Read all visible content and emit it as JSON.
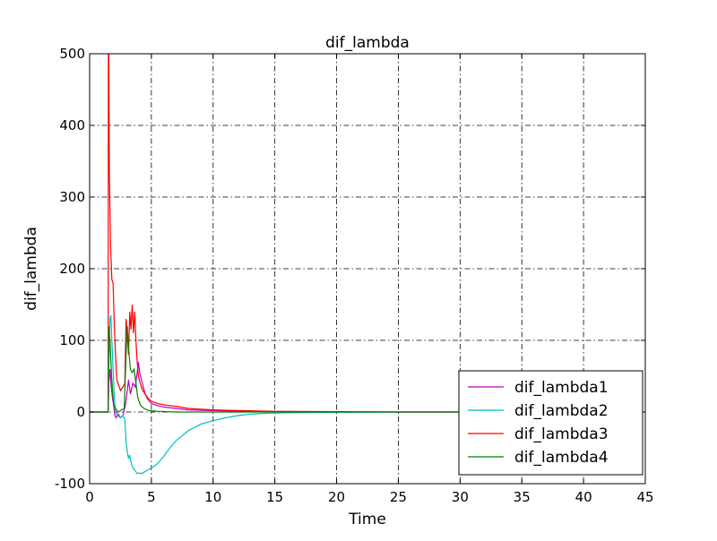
{
  "chart_data": {
    "type": "line",
    "title": "dif_lambda",
    "xlabel": "Time",
    "ylabel": "dif_lambda",
    "xlim": [
      0,
      45
    ],
    "ylim": [
      -100,
      500
    ],
    "xticks": [
      0,
      5,
      10,
      15,
      20,
      25,
      30,
      35,
      40,
      45
    ],
    "yticks": [
      -100,
      0,
      100,
      200,
      300,
      400,
      500
    ],
    "grid": true,
    "grid_style": "dash-dot",
    "legend_position": "lower-right",
    "series": [
      {
        "name": "dif_lambda1",
        "color": "#bf00bf",
        "points": [
          [
            0,
            0
          ],
          [
            1.5,
            0
          ],
          [
            1.55,
            40
          ],
          [
            1.65,
            60
          ],
          [
            1.75,
            35
          ],
          [
            1.85,
            20
          ],
          [
            1.95,
            8
          ],
          [
            2.05,
            -5
          ],
          [
            2.15,
            -8
          ],
          [
            2.3,
            -3
          ],
          [
            2.5,
            -8
          ],
          [
            2.7,
            -5
          ],
          [
            2.9,
            10
          ],
          [
            3.05,
            30
          ],
          [
            3.15,
            45
          ],
          [
            3.3,
            25
          ],
          [
            3.5,
            40
          ],
          [
            3.7,
            35
          ],
          [
            3.85,
            55
          ],
          [
            3.95,
            70
          ],
          [
            4.05,
            55
          ],
          [
            4.2,
            45
          ],
          [
            4.35,
            35
          ],
          [
            4.5,
            25
          ],
          [
            4.7,
            18
          ],
          [
            5.0,
            12
          ],
          [
            5.5,
            9
          ],
          [
            6.0,
            7
          ],
          [
            7.0,
            5
          ],
          [
            8.0,
            3
          ],
          [
            10.0,
            2
          ],
          [
            12.0,
            1
          ],
          [
            15.0,
            0.5
          ],
          [
            20.0,
            0.2
          ],
          [
            25.0,
            0
          ],
          [
            30.0,
            0
          ],
          [
            31.0,
            0
          ]
        ]
      },
      {
        "name": "dif_lambda2",
        "color": "#00bfbf",
        "points": [
          [
            0,
            0
          ],
          [
            1.5,
            0
          ],
          [
            1.55,
            60
          ],
          [
            1.65,
            130
          ],
          [
            1.72,
            135
          ],
          [
            1.8,
            100
          ],
          [
            1.9,
            60
          ],
          [
            2.0,
            20
          ],
          [
            2.1,
            0
          ],
          [
            2.25,
            -5
          ],
          [
            2.5,
            -8
          ],
          [
            2.7,
            -5
          ],
          [
            2.85,
            -10
          ],
          [
            2.95,
            -40
          ],
          [
            3.05,
            -55
          ],
          [
            3.15,
            -65
          ],
          [
            3.25,
            -60
          ],
          [
            3.35,
            -70
          ],
          [
            3.5,
            -78
          ],
          [
            3.7,
            -82
          ],
          [
            3.85,
            -86
          ],
          [
            4.0,
            -85
          ],
          [
            4.2,
            -86
          ],
          [
            4.4,
            -84
          ],
          [
            4.6,
            -82
          ],
          [
            4.8,
            -80
          ],
          [
            5.0,
            -78
          ],
          [
            5.3,
            -75
          ],
          [
            5.6,
            -70
          ],
          [
            6.0,
            -62
          ],
          [
            6.5,
            -50
          ],
          [
            7.0,
            -40
          ],
          [
            8.0,
            -26
          ],
          [
            9.0,
            -17
          ],
          [
            10.0,
            -12
          ],
          [
            11.0,
            -8
          ],
          [
            12.0,
            -5
          ],
          [
            13.0,
            -3
          ],
          [
            14.0,
            -2
          ],
          [
            15.0,
            -1.5
          ],
          [
            17.0,
            -0.8
          ],
          [
            20.0,
            -0.3
          ],
          [
            25.0,
            0
          ],
          [
            31.0,
            0
          ]
        ]
      },
      {
        "name": "dif_lambda3",
        "color": "#ff0000",
        "points": [
          [
            0,
            0
          ],
          [
            1.5,
            0
          ],
          [
            1.52,
            500
          ],
          [
            1.55,
            500
          ],
          [
            1.6,
            330
          ],
          [
            1.7,
            230
          ],
          [
            1.8,
            185
          ],
          [
            1.9,
            180
          ],
          [
            2.0,
            120
          ],
          [
            2.1,
            80
          ],
          [
            2.2,
            45
          ],
          [
            2.3,
            40
          ],
          [
            2.5,
            30
          ],
          [
            2.7,
            35
          ],
          [
            2.85,
            40
          ],
          [
            2.95,
            130
          ],
          [
            3.05,
            110
          ],
          [
            3.15,
            80
          ],
          [
            3.25,
            140
          ],
          [
            3.35,
            115
          ],
          [
            3.45,
            150
          ],
          [
            3.55,
            110
          ],
          [
            3.65,
            140
          ],
          [
            3.75,
            100
          ],
          [
            3.85,
            70
          ],
          [
            3.95,
            50
          ],
          [
            4.1,
            40
          ],
          [
            4.3,
            30
          ],
          [
            4.5,
            25
          ],
          [
            4.7,
            20
          ],
          [
            5.0,
            15
          ],
          [
            5.5,
            12
          ],
          [
            6.0,
            10
          ],
          [
            6.5,
            9
          ],
          [
            7.0,
            8
          ],
          [
            8.0,
            5
          ],
          [
            9.0,
            4
          ],
          [
            10.0,
            3
          ],
          [
            12.0,
            2
          ],
          [
            15.0,
            1
          ],
          [
            20.0,
            0.5
          ],
          [
            25.0,
            0
          ],
          [
            31.0,
            0
          ]
        ]
      },
      {
        "name": "dif_lambda4",
        "color": "#008000",
        "points": [
          [
            0,
            0
          ],
          [
            1.5,
            0
          ],
          [
            1.55,
            120
          ],
          [
            1.65,
            100
          ],
          [
            1.75,
            60
          ],
          [
            1.85,
            30
          ],
          [
            1.95,
            10
          ],
          [
            2.1,
            5
          ],
          [
            2.3,
            0
          ],
          [
            2.6,
            3
          ],
          [
            2.8,
            5
          ],
          [
            2.95,
            80
          ],
          [
            3.05,
            120
          ],
          [
            3.15,
            90
          ],
          [
            3.3,
            60
          ],
          [
            3.45,
            55
          ],
          [
            3.6,
            60
          ],
          [
            3.75,
            40
          ],
          [
            3.9,
            20
          ],
          [
            4.1,
            10
          ],
          [
            4.4,
            5
          ],
          [
            4.8,
            2
          ],
          [
            5.5,
            1
          ],
          [
            7.0,
            0
          ],
          [
            10.0,
            0
          ],
          [
            20.0,
            0
          ],
          [
            31.0,
            0
          ]
        ]
      }
    ]
  }
}
